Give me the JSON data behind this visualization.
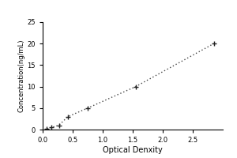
{
  "x_data": [
    0.07,
    0.15,
    0.27,
    0.42,
    0.75,
    1.55,
    2.85
  ],
  "y_data": [
    0.2,
    0.5,
    1.0,
    3.0,
    5.0,
    10.0,
    20.0
  ],
  "xlabel": "Optical Denxity",
  "ylabel": "Concentration(ng/mL)",
  "xlim": [
    0,
    3.0
  ],
  "ylim": [
    0,
    25
  ],
  "xticks": [
    0,
    0.5,
    1,
    1.5,
    2,
    2.5
  ],
  "yticks": [
    0,
    5,
    10,
    15,
    20,
    25
  ],
  "line_color": "#444444",
  "marker_color": "#222222",
  "background_color": "#ffffff",
  "tick_fontsize": 6.0,
  "xlabel_fontsize": 7.0,
  "ylabel_fontsize": 6.0
}
